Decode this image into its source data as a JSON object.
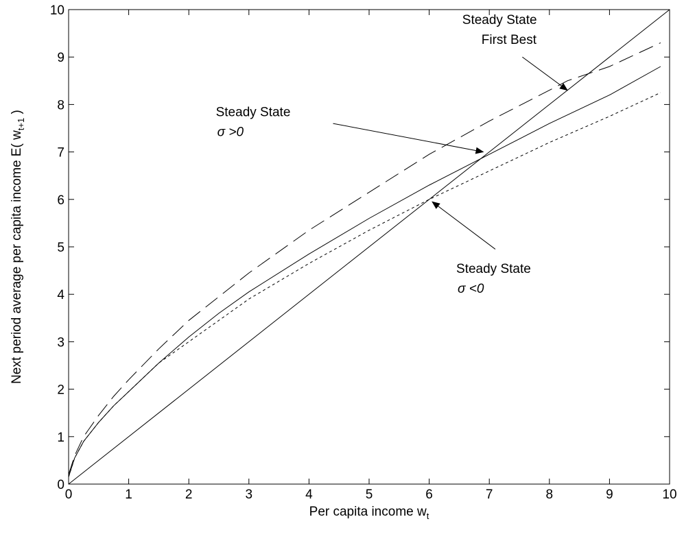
{
  "chart_data": {
    "type": "line",
    "title": "",
    "xlabel": "Per capita income w",
    "xlabel_sub": "t",
    "ylabel": "Next period average per capita income E( w",
    "ylabel_sub": "t+1",
    "ylabel_tail": " )",
    "xlim": [
      0,
      10
    ],
    "ylim": [
      0,
      10
    ],
    "xticks": [
      0,
      1,
      2,
      3,
      4,
      5,
      6,
      7,
      8,
      9,
      10
    ],
    "yticks": [
      0,
      1,
      2,
      3,
      4,
      5,
      6,
      7,
      8,
      9,
      10
    ],
    "grid": false,
    "series": [
      {
        "style": "solid",
        "x": [
          0,
          10
        ],
        "y": [
          0,
          10
        ]
      },
      {
        "style": "dashed",
        "x": [
          0,
          0.1,
          0.25,
          0.5,
          0.75,
          1,
          1.5,
          2,
          2.5,
          3,
          4,
          5,
          6,
          7,
          8,
          8.3,
          9,
          9.85
        ],
        "y": [
          0.2,
          0.6,
          1.0,
          1.45,
          1.85,
          2.2,
          2.85,
          3.45,
          3.95,
          4.45,
          5.35,
          6.15,
          6.95,
          7.65,
          8.3,
          8.5,
          8.8,
          9.3
        ]
      },
      {
        "style": "solid",
        "x": [
          0,
          0.1,
          0.25,
          0.5,
          0.75,
          1,
          1.5,
          2,
          2.5,
          3,
          4,
          5,
          6,
          7,
          8,
          9,
          9.85
        ],
        "y": [
          0.15,
          0.55,
          0.9,
          1.3,
          1.65,
          1.95,
          2.55,
          3.1,
          3.6,
          4.05,
          4.85,
          5.6,
          6.3,
          6.95,
          7.6,
          8.2,
          8.8
        ]
      },
      {
        "style": "dotted",
        "x": [
          0,
          0.1,
          0.25,
          0.5,
          0.75,
          1,
          1.5,
          2,
          2.5,
          3,
          4,
          5,
          6,
          7,
          8,
          9,
          9.85
        ],
        "y": [
          0.15,
          0.55,
          0.9,
          1.3,
          1.65,
          1.95,
          2.55,
          3.0,
          3.45,
          3.9,
          4.65,
          5.35,
          6.0,
          6.6,
          7.2,
          7.75,
          8.25
        ]
      }
    ],
    "annotations": [
      {
        "line1": "Steady State",
        "line2": "First Best",
        "italic2": false,
        "text_x": 6.55,
        "text_y": 9.7,
        "arrow_from": [
          7.55,
          9.0
        ],
        "arrow_to": [
          8.3,
          8.3
        ]
      },
      {
        "line1": "Steady State",
        "line2": "σ >0",
        "italic2": true,
        "text_x": 2.45,
        "text_y": 7.75,
        "arrow_from": [
          4.4,
          7.6
        ],
        "arrow_to": [
          6.9,
          7.0
        ]
      },
      {
        "line1": "Steady State",
        "line2": "σ <0",
        "italic2": true,
        "text_x": 6.45,
        "text_y": 4.45,
        "arrow_from": [
          7.1,
          4.95
        ],
        "arrow_to": [
          6.05,
          5.95
        ]
      }
    ]
  }
}
